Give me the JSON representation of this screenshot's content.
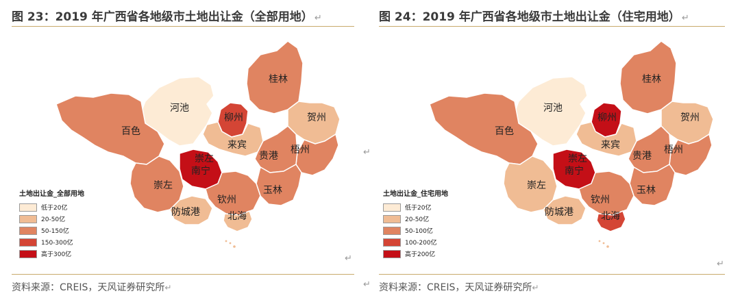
{
  "panels": [
    {
      "id": "all",
      "title": "图 23：2019 年广西省各地级市土地出让金（全部用地）",
      "source": "资料来源：CREIS，天风证券研究所",
      "legend": {
        "title": "土地出让金_全部用地",
        "classes": [
          {
            "label": "低于20亿",
            "color": "#fdebd5"
          },
          {
            "label": "20-50亿",
            "color": "#f0bc94"
          },
          {
            "label": "50-150亿",
            "color": "#e08461"
          },
          {
            "label": "150-300亿",
            "color": "#d44535"
          },
          {
            "label": "高于300亿",
            "color": "#c40f17"
          }
        ]
      },
      "regions": [
        {
          "name": "河池",
          "class": 0
        },
        {
          "name": "柳州",
          "class": 3
        },
        {
          "name": "桂林",
          "class": 2
        },
        {
          "name": "贺州",
          "class": 1
        },
        {
          "name": "百色",
          "class": 2
        },
        {
          "name": "来宾",
          "class": 1
        },
        {
          "name": "梧州",
          "class": 2
        },
        {
          "name": "贵港",
          "class": 2
        },
        {
          "name": "崇左",
          "class": 2
        },
        {
          "name": "南宁",
          "class": 4
        },
        {
          "name": "玉林",
          "class": 2
        },
        {
          "name": "钦州",
          "class": 2
        },
        {
          "name": "防城港",
          "class": 1
        },
        {
          "name": "北海",
          "class": 1
        }
      ],
      "extra_labels": [
        "崇左"
      ]
    },
    {
      "id": "residential",
      "title": "图 24：2019 年广西省各地级市土地出让金（住宅用地）",
      "source": "资料来源：CREIS，天风证券研究所",
      "legend": {
        "title": "土地出让金_住宅用地",
        "classes": [
          {
            "label": "低于20亿",
            "color": "#fdebd5"
          },
          {
            "label": "20-50亿",
            "color": "#f0bc94"
          },
          {
            "label": "50-100亿",
            "color": "#e08461"
          },
          {
            "label": "100-200亿",
            "color": "#d44535"
          },
          {
            "label": "高于200亿",
            "color": "#c40f17"
          }
        ]
      },
      "regions": [
        {
          "name": "河池",
          "class": 0
        },
        {
          "name": "柳州",
          "class": 4
        },
        {
          "name": "桂林",
          "class": 2
        },
        {
          "name": "贺州",
          "class": 1
        },
        {
          "name": "百色",
          "class": 2
        },
        {
          "name": "来宾",
          "class": 1
        },
        {
          "name": "梧州",
          "class": 2
        },
        {
          "name": "贵港",
          "class": 2
        },
        {
          "name": "崇左",
          "class": 1
        },
        {
          "name": "南宁",
          "class": 4
        },
        {
          "name": "玉林",
          "class": 2
        },
        {
          "name": "钦州",
          "class": 2
        },
        {
          "name": "防城港",
          "class": 1
        },
        {
          "name": "北海",
          "class": 3
        }
      ],
      "extra_labels": [
        "崇左"
      ]
    }
  ]
}
